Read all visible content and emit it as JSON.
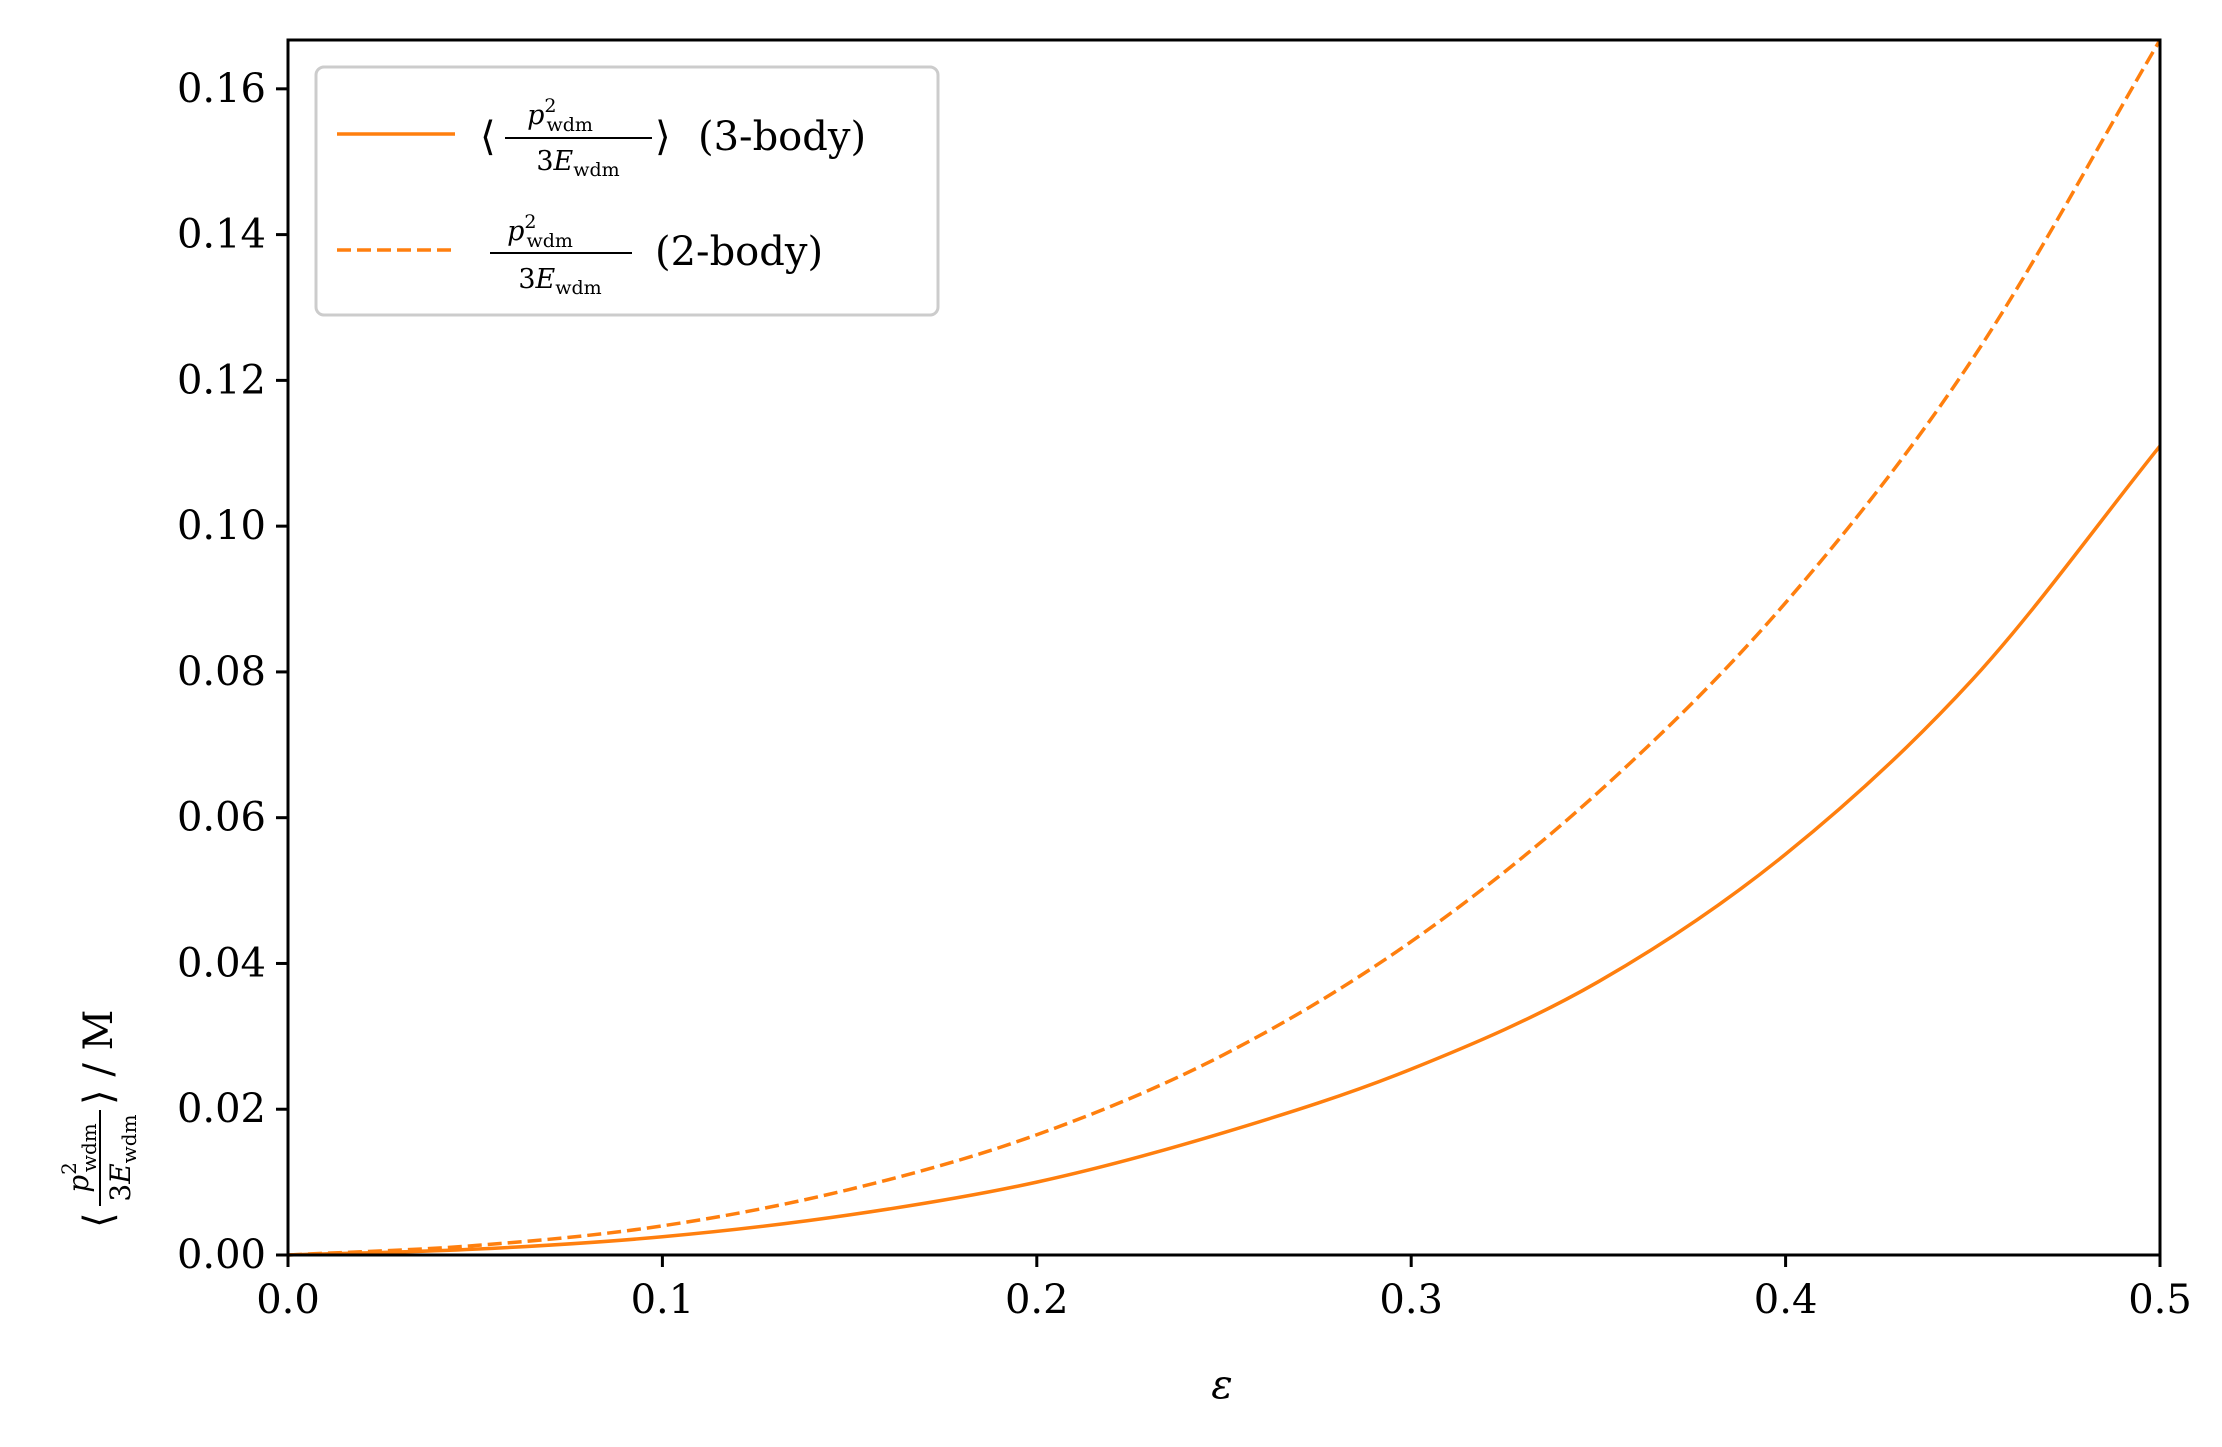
{
  "chart_data": {
    "type": "line",
    "xlabel": "ε",
    "ylabel": "⟨p²_wdm / 3E_wdm⟩ / M",
    "xlim": [
      0.0,
      0.5
    ],
    "ylim": [
      0.0,
      0.1667
    ],
    "x_ticks": [
      0.0,
      0.1,
      0.2,
      0.3,
      0.4,
      0.5
    ],
    "x_tick_labels": [
      "0.0",
      "0.1",
      "0.2",
      "0.3",
      "0.4",
      "0.5"
    ],
    "y_ticks": [
      0.0,
      0.02,
      0.04,
      0.06,
      0.08,
      0.1,
      0.12,
      0.14,
      0.16
    ],
    "y_tick_labels": [
      "0.00",
      "0.02",
      "0.04",
      "0.06",
      "0.08",
      "0.10",
      "0.12",
      "0.14",
      "0.16"
    ],
    "grid": false,
    "legend_position": "top-left",
    "x": [
      0.0,
      0.05,
      0.1,
      0.15,
      0.2,
      0.25,
      0.3,
      0.35,
      0.4,
      0.45,
      0.5
    ],
    "series": [
      {
        "name": "⟨p²_wdm / 3E_wdm⟩ (3-body)",
        "legend_suffix": "(3-body)",
        "style": "solid",
        "color": "#ff7f0e",
        "values": [
          0.0,
          0.0008,
          0.0025,
          0.0055,
          0.01,
          0.0168,
          0.0255,
          0.0375,
          0.055,
          0.079,
          0.111
        ]
      },
      {
        "name": "p²_wdm / 3E_wdm (2-body)",
        "legend_suffix": "(2-body)",
        "style": "dashed",
        "color": "#ff7f0e",
        "values": [
          0.0,
          0.0013,
          0.004,
          0.009,
          0.0165,
          0.0275,
          0.043,
          0.0635,
          0.0895,
          0.123,
          0.1667
        ]
      }
    ]
  }
}
